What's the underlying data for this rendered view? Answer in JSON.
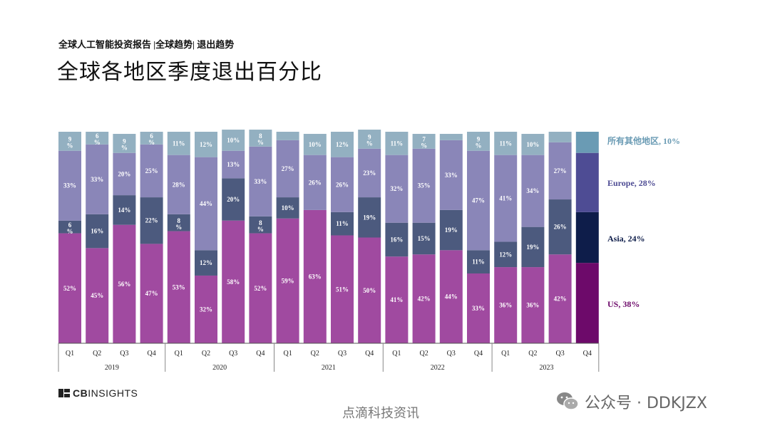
{
  "header": {
    "subtitle": "全球人工智能投资报告 |全球趋势| 退出趋势",
    "title": "全球各地区季度退出百分比"
  },
  "colors": {
    "us": "#a04aa0",
    "asia": "#4c5a7e",
    "europe": "#8a86b8",
    "others": "#93b0c1",
    "legend_us": "#6d0a6a",
    "legend_asia": "#0e1d4a",
    "legend_europe": "#4e4c94",
    "legend_others": "#6a9bb4"
  },
  "chart_data": {
    "type": "bar",
    "stacked": true,
    "percent": true,
    "title": "全球各地区季度退出百分比",
    "ylim": [
      0,
      100
    ],
    "categories": [
      "Q1",
      "Q2",
      "Q3",
      "Q4",
      "Q1",
      "Q2",
      "Q3",
      "Q4",
      "Q1",
      "Q2",
      "Q3",
      "Q4",
      "Q1",
      "Q2",
      "Q3",
      "Q4",
      "Q1",
      "Q2",
      "Q3"
    ],
    "years": [
      {
        "label": "2019",
        "start": 0,
        "count": 4
      },
      {
        "label": "2020",
        "start": 4,
        "count": 4
      },
      {
        "label": "2021",
        "start": 8,
        "count": 4
      },
      {
        "label": "2022",
        "start": 12,
        "count": 4
      },
      {
        "label": "2023",
        "start": 16,
        "count": 4
      }
    ],
    "series": [
      {
        "name": "US",
        "key": "us",
        "values": [
          52,
          45,
          56,
          47,
          53,
          32,
          58,
          52,
          59,
          63,
          51,
          50,
          41,
          42,
          44,
          33,
          36,
          36,
          42
        ]
      },
      {
        "name": "Asia",
        "key": "asia",
        "values": [
          6,
          16,
          14,
          22,
          8,
          12,
          20,
          8,
          10,
          0,
          11,
          19,
          16,
          15,
          19,
          11,
          12,
          19,
          26
        ]
      },
      {
        "name": "Europe",
        "key": "europe",
        "values": [
          33,
          33,
          20,
          25,
          28,
          44,
          13,
          33,
          27,
          26,
          26,
          23,
          32,
          35,
          33,
          47,
          41,
          34,
          27
        ]
      },
      {
        "name": "所有其他地区",
        "key": "others",
        "values": [
          9,
          6,
          9,
          6,
          11,
          12,
          10,
          8,
          4,
          10,
          12,
          9,
          11,
          7,
          3,
          9,
          11,
          10,
          5
        ]
      }
    ],
    "labels": [
      [
        "52%",
        "6\n%",
        "33%",
        "9\n%"
      ],
      [
        "45%",
        "16%",
        "33%",
        "6\n%"
      ],
      [
        "56%",
        "14%",
        "20%",
        "9\n%"
      ],
      [
        "47%",
        "22%",
        "25%",
        "6\n%"
      ],
      [
        "53%",
        "8\n%",
        "28%",
        "11%"
      ],
      [
        "32%",
        "12%",
        "44%",
        "12%"
      ],
      [
        "58%",
        "20%",
        "13%",
        "10%"
      ],
      [
        "52%",
        "8\n%",
        "33%",
        "8\n%"
      ],
      [
        "59%",
        "10%",
        "27%",
        ""
      ],
      [
        "63%",
        "",
        "26%",
        "10%"
      ],
      [
        "51%",
        "11%",
        "26%",
        "12%"
      ],
      [
        "50%",
        "19%",
        "23%",
        "9\n%"
      ],
      [
        "41%",
        "16%",
        "32%",
        "11%"
      ],
      [
        "42%",
        "15%",
        "35%",
        "7\n%"
      ],
      [
        "44%",
        "19%",
        "33%",
        ""
      ],
      [
        "33%",
        "11%",
        "47%",
        "9\n%"
      ],
      [
        "36%",
        "12%",
        "41%",
        "11%"
      ],
      [
        "36%",
        "19%",
        "34%",
        "10%"
      ],
      [
        "42%",
        "26%",
        "27%",
        ""
      ]
    ],
    "last_quarter": {
      "label": "Q4",
      "year": "2023"
    },
    "legend": [
      {
        "key": "others",
        "label": "所有其他地区, 10%",
        "value": 10
      },
      {
        "key": "europe",
        "label": "Europe, 28%",
        "value": 28
      },
      {
        "key": "asia",
        "label": "Asia, 24%",
        "value": 24
      },
      {
        "key": "us",
        "label": "US, 38%",
        "value": 38
      }
    ]
  },
  "footer": {
    "logo_text_bold": "CB",
    "logo_text": "INSIGHTS",
    "source": "点滴科技资讯",
    "wechat_label": "公众号 · DDKJZX"
  }
}
